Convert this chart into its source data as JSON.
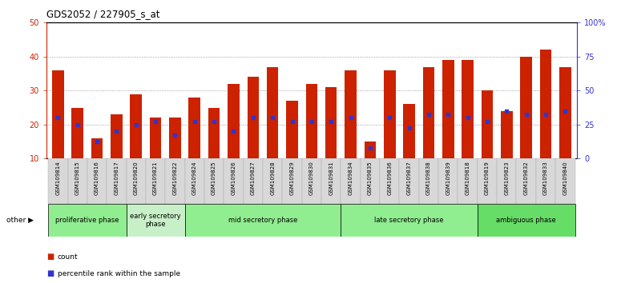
{
  "title": "GDS2052 / 227905_s_at",
  "samples": [
    "GSM109814",
    "GSM109815",
    "GSM109816",
    "GSM109817",
    "GSM109820",
    "GSM109821",
    "GSM109822",
    "GSM109824",
    "GSM109825",
    "GSM109826",
    "GSM109827",
    "GSM109828",
    "GSM109829",
    "GSM109830",
    "GSM109831",
    "GSM109834",
    "GSM109835",
    "GSM109836",
    "GSM109837",
    "GSM109838",
    "GSM109839",
    "GSM109818",
    "GSM109819",
    "GSM109823",
    "GSM109832",
    "GSM109833",
    "GSM109840"
  ],
  "count_values": [
    36,
    25,
    16,
    23,
    29,
    22,
    22,
    28,
    25,
    32,
    34,
    37,
    27,
    32,
    31,
    36,
    15,
    36,
    26,
    37,
    39,
    39,
    30,
    24,
    40,
    42,
    37
  ],
  "percentile_values": [
    22,
    20,
    15,
    18,
    20,
    21,
    17,
    21,
    21,
    18,
    22,
    22,
    21,
    21,
    21,
    22,
    13,
    22,
    19,
    23,
    23,
    22,
    21,
    24,
    23,
    23,
    24
  ],
  "phases": [
    {
      "label": "proliferative phase",
      "start": 0,
      "end": 3,
      "color": "#90EE90"
    },
    {
      "label": "early secretory\nphase",
      "start": 4,
      "end": 6,
      "color": "#c8f0c8"
    },
    {
      "label": "mid secretory phase",
      "start": 7,
      "end": 14,
      "color": "#90EE90"
    },
    {
      "label": "late secretory phase",
      "start": 15,
      "end": 21,
      "color": "#90EE90"
    },
    {
      "label": "ambiguous phase",
      "start": 22,
      "end": 26,
      "color": "#66DD66"
    }
  ],
  "bar_color": "#CC2200",
  "dot_color": "#3333CC",
  "ylim_left": [
    10,
    50
  ],
  "ylim_right": [
    0,
    100
  ],
  "left_tick_color": "#CC2200",
  "right_tick_color": "#3333CC",
  "background_color": "#ffffff",
  "plot_bg_color": "#ffffff",
  "grid_color": "#888888",
  "left_yticks": [
    10,
    20,
    30,
    40,
    50
  ],
  "right_yticks": [
    0,
    25,
    50,
    75,
    100
  ],
  "right_yticklabels": [
    "0",
    "25",
    "50",
    "75",
    "100%"
  ]
}
